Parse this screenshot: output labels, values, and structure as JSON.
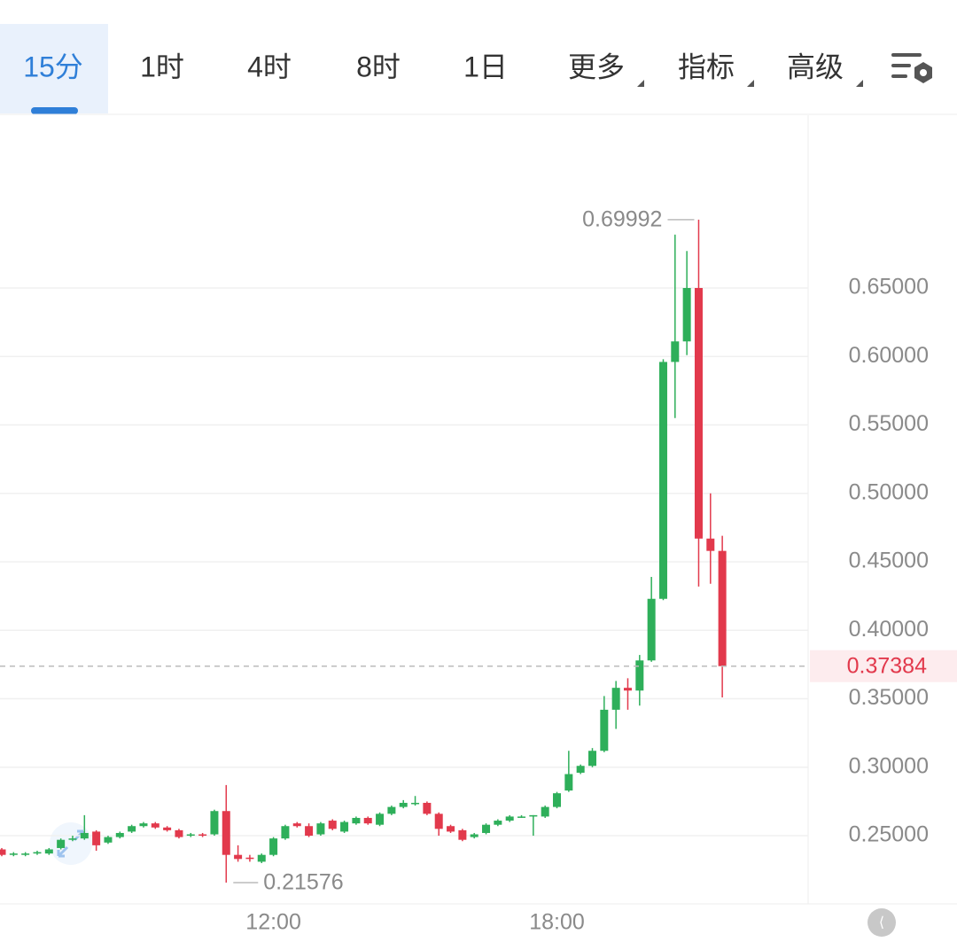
{
  "tabs": [
    "15分",
    "1时",
    "4时",
    "8时",
    "1日",
    "更多",
    "指标",
    "高级"
  ],
  "active_tab": 0,
  "chart_data": {
    "type": "candlestick",
    "categories": [
      null,
      null,
      null,
      null,
      null,
      null,
      null,
      null,
      null,
      null,
      null,
      null,
      null,
      null,
      null,
      null,
      null,
      null,
      null,
      null,
      null,
      null,
      null,
      "12:00",
      null,
      null,
      null,
      null,
      null,
      null,
      null,
      null,
      null,
      null,
      null,
      null,
      null,
      null,
      null,
      null,
      null,
      null,
      null,
      null,
      null,
      null,
      null,
      "18:00",
      null,
      null,
      null,
      null,
      null,
      null,
      null,
      null,
      null,
      null,
      null,
      null,
      null,
      null
    ],
    "open": [
      0.24,
      0.236,
      0.236,
      0.237,
      0.237,
      0.241,
      0.247,
      0.248,
      0.253,
      0.245,
      0.249,
      0.253,
      0.257,
      0.259,
      0.256,
      0.254,
      0.25,
      0.251,
      0.251,
      0.268,
      0.236,
      0.234,
      0.231,
      0.236,
      0.248,
      0.259,
      0.257,
      0.251,
      0.261,
      0.253,
      0.259,
      0.263,
      0.258,
      0.266,
      0.271,
      0.274,
      0.274,
      0.266,
      0.257,
      0.254,
      0.249,
      0.252,
      0.258,
      0.261,
      0.264,
      0.264,
      0.264,
      0.271,
      0.283,
      0.296,
      0.301,
      0.312,
      0.342,
      0.358,
      0.356,
      0.378,
      0.423,
      0.596,
      0.611,
      0.65,
      0.467,
      0.458
    ],
    "high": [
      0.241,
      0.238,
      0.238,
      0.239,
      0.241,
      0.248,
      0.25,
      0.265,
      0.254,
      0.25,
      0.253,
      0.258,
      0.26,
      0.26,
      0.257,
      0.255,
      0.252,
      0.252,
      0.269,
      0.287,
      0.243,
      0.236,
      0.237,
      0.249,
      0.258,
      0.26,
      0.259,
      0.26,
      0.262,
      0.261,
      0.264,
      0.264,
      0.267,
      0.272,
      0.276,
      0.279,
      0.275,
      0.267,
      0.258,
      0.255,
      0.252,
      0.259,
      0.262,
      0.265,
      0.265,
      0.265,
      0.272,
      0.282,
      0.312,
      0.302,
      0.314,
      0.352,
      0.363,
      0.365,
      0.382,
      0.439,
      0.598,
      0.689,
      0.677,
      0.69992,
      0.5,
      0.469
    ],
    "low": [
      0.235,
      0.235,
      0.235,
      0.236,
      0.236,
      0.24,
      0.246,
      0.247,
      0.239,
      0.244,
      0.248,
      0.252,
      0.256,
      0.255,
      0.253,
      0.248,
      0.249,
      0.249,
      0.25,
      0.21576,
      0.231,
      0.231,
      0.23,
      0.235,
      0.247,
      0.256,
      0.249,
      0.25,
      0.254,
      0.252,
      0.258,
      0.258,
      0.257,
      0.265,
      0.27,
      0.272,
      0.265,
      0.25,
      0.252,
      0.246,
      0.248,
      0.251,
      0.257,
      0.26,
      0.263,
      0.25,
      0.263,
      0.27,
      0.282,
      0.295,
      0.3,
      0.311,
      0.328,
      0.342,
      0.345,
      0.377,
      0.422,
      0.555,
      0.601,
      0.432,
      0.434,
      0.351
    ],
    "close": [
      0.236,
      0.237,
      0.237,
      0.238,
      0.24,
      0.247,
      0.248,
      0.252,
      0.243,
      0.249,
      0.252,
      0.257,
      0.259,
      0.256,
      0.254,
      0.249,
      0.251,
      0.25,
      0.268,
      0.236,
      0.233,
      0.233,
      0.236,
      0.248,
      0.257,
      0.257,
      0.25,
      0.259,
      0.255,
      0.26,
      0.263,
      0.259,
      0.266,
      0.271,
      0.274,
      0.274,
      0.266,
      0.255,
      0.253,
      0.247,
      0.251,
      0.258,
      0.261,
      0.264,
      0.264,
      0.265,
      0.271,
      0.281,
      0.295,
      0.301,
      0.312,
      0.342,
      0.358,
      0.356,
      0.378,
      0.423,
      0.596,
      0.611,
      0.65,
      0.467,
      0.458,
      0.37384
    ],
    "up_color": "#2eaf5a",
    "down_color": "#e2394c",
    "ylim": [
      0.2002,
      0.7762
    ],
    "yticks": [
      {
        "value": 0.25,
        "label": "0.25000"
      },
      {
        "value": 0.3,
        "label": "0.30000"
      },
      {
        "value": 0.35,
        "label": "0.35000"
      },
      {
        "value": 0.4,
        "label": "0.40000"
      },
      {
        "value": 0.45,
        "label": "0.45000"
      },
      {
        "value": 0.5,
        "label": "0.50000"
      },
      {
        "value": 0.55,
        "label": "0.55000"
      },
      {
        "value": 0.6,
        "label": "0.60000"
      },
      {
        "value": 0.65,
        "label": "0.65000"
      }
    ],
    "grid": true,
    "current_price": 0.37384,
    "max_marker": 0.69992,
    "min_marker": 0.21576
  }
}
